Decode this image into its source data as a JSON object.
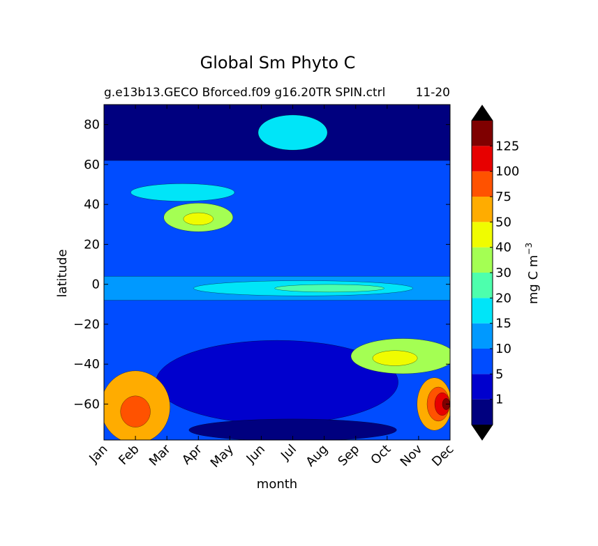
{
  "chart_data": {
    "type": "heatmap",
    "title": "Global Sm Phyto C",
    "subtitle_left": "g.e13b13.GECO Bforced.f09 g16.20TR SPIN.ctrl",
    "subtitle_right": "11-20",
    "xlabel": "month",
    "ylabel": "latitude",
    "x_ticks": [
      "Jan",
      "Feb",
      "Mar",
      "Apr",
      "May",
      "Jun",
      "Jul",
      "Aug",
      "Sep",
      "Oct",
      "Nov",
      "Dec"
    ],
    "y_ticks": [
      80,
      60,
      40,
      20,
      0,
      -20,
      -40,
      -60
    ],
    "ylim": [
      -78,
      90
    ],
    "colorbar": {
      "label": "mg C m",
      "label_sup": "−3",
      "extend": "both",
      "tick_labels": [
        "1",
        "5",
        "10",
        "15",
        "20",
        "30",
        "40",
        "50",
        "75",
        "100",
        "125"
      ],
      "levels": [
        {
          "color": "#00007f"
        },
        {
          "color": "#0000cd"
        },
        {
          "color": "#004cff"
        },
        {
          "color": "#0099ff"
        },
        {
          "color": "#00e5f8"
        },
        {
          "color": "#4dffad"
        },
        {
          "color": "#a4ff53"
        },
        {
          "color": "#f0fc00"
        },
        {
          "color": "#ffac00"
        },
        {
          "color": "#ff5200"
        },
        {
          "color": "#e70000"
        },
        {
          "color": "#7f0000"
        }
      ],
      "under_color": "#000000",
      "over_color": "#000000"
    },
    "features": [
      {
        "name": "arctic-low",
        "level": 0,
        "month_range": [
          "Jan",
          "Dec"
        ],
        "lat_range": [
          62,
          90
        ]
      },
      {
        "name": "arctic-summer-bloom",
        "level": 4,
        "month_range": [
          "Jun",
          "Aug"
        ],
        "lat_range": [
          68,
          84
        ]
      },
      {
        "name": "north-atlantic-spring-bloom",
        "level": 6,
        "month_range": [
          "Mar",
          "May"
        ],
        "lat_range": [
          27,
          40
        ],
        "peak_level": 7,
        "peak_month": "Apr",
        "peak_lat": 32
      },
      {
        "name": "north-band-45",
        "level": 4,
        "month_range": [
          "Feb",
          "May"
        ],
        "lat_range": [
          42,
          50
        ]
      },
      {
        "name": "equatorial-band",
        "level": 3,
        "month_range": [
          "Jan",
          "Dec"
        ],
        "lat_range": [
          -8,
          4
        ],
        "peak_level": 5,
        "peak_month": "Sep"
      },
      {
        "name": "southern-mid-lat-bloom",
        "level": 6,
        "month_range": [
          "Sep",
          "Dec"
        ],
        "lat_range": [
          -44,
          -28
        ],
        "peak_level": 7,
        "peak_month": "Oct",
        "peak_lat": -38
      },
      {
        "name": "southern-summer-bloom-late",
        "level": 8,
        "month_range": [
          "Nov",
          "Dec"
        ],
        "lat_range": [
          -72,
          -48
        ],
        "peak_level": 11,
        "peak_month": "Dec",
        "peak_lat": -60
      },
      {
        "name": "southern-summer-bloom-early",
        "level": 8,
        "month_range": [
          "Jan",
          "Mar"
        ],
        "lat_range": [
          -78,
          -45
        ],
        "peak_level": 9,
        "peak_month": "Feb",
        "peak_lat": -66
      },
      {
        "name": "antarctic-winter-low",
        "level": 0,
        "month_range": [
          "Apr",
          "Oct"
        ],
        "lat_range": [
          -78,
          -68
        ]
      },
      {
        "name": "southern-winter-low",
        "level": 1,
        "month_range": [
          "Mar",
          "Oct"
        ],
        "lat_range": [
          -68,
          -30
        ]
      }
    ]
  }
}
